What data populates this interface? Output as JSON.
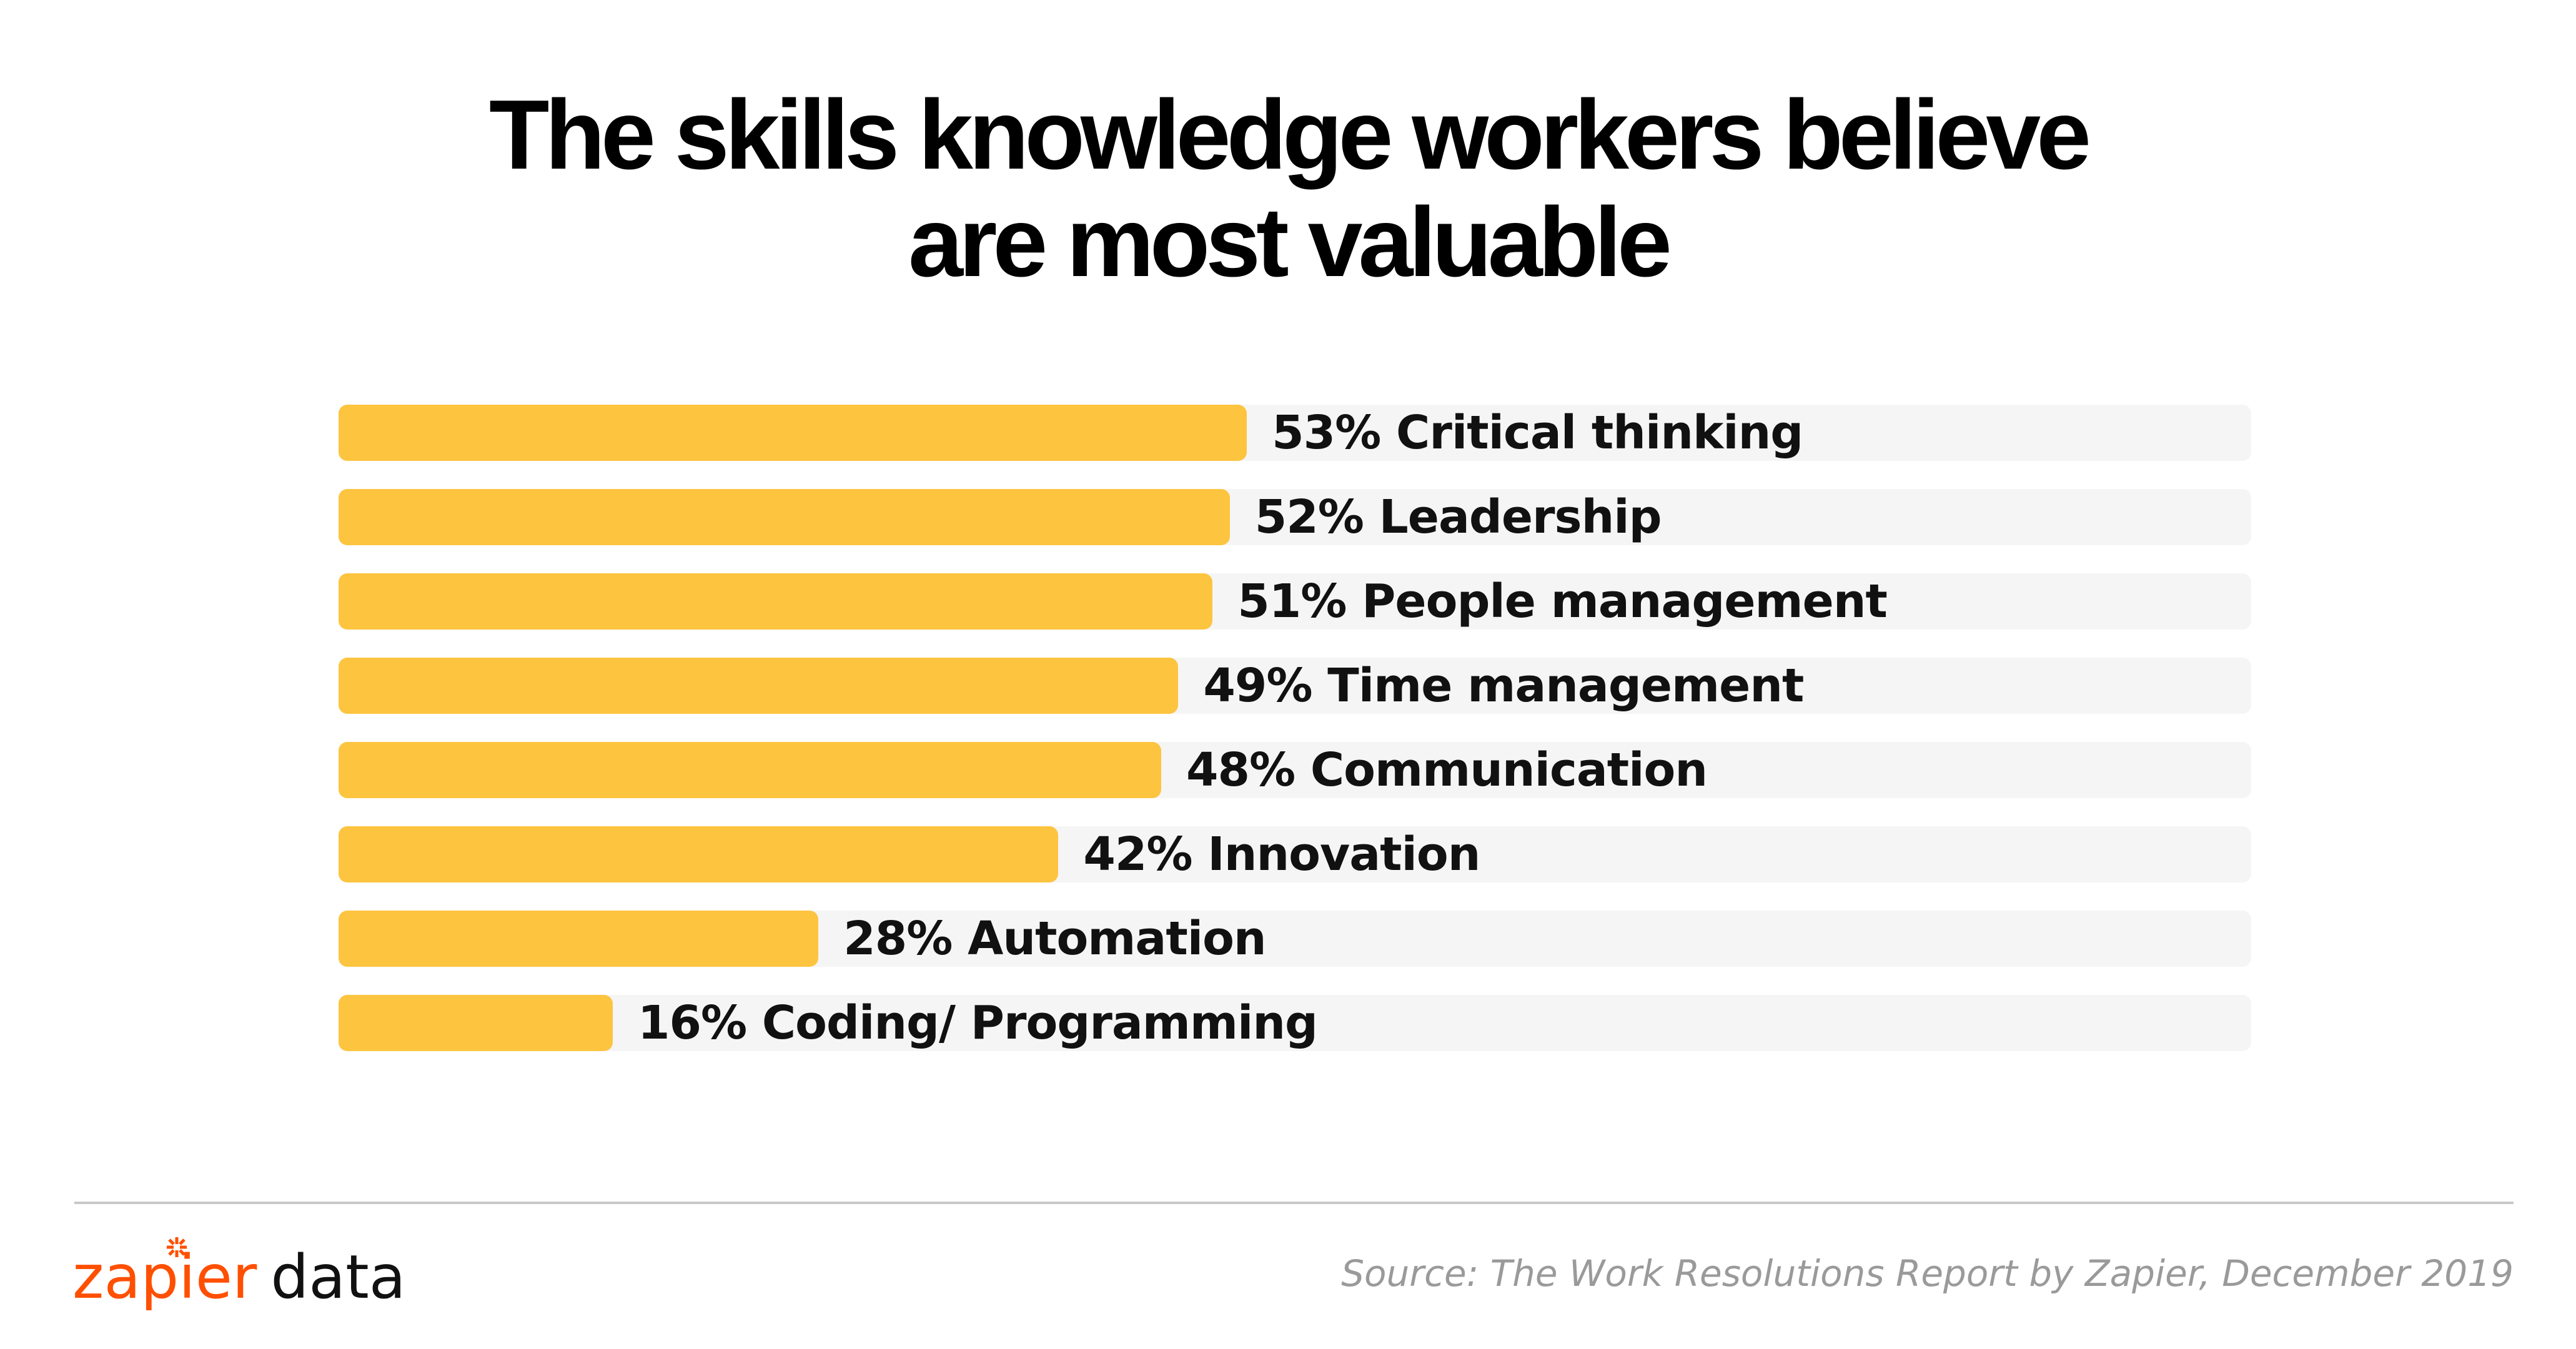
{
  "chart_data": {
    "type": "bar",
    "orientation": "horizontal",
    "title": "The skills knowledge workers believe are most valuable",
    "title_lines": [
      "The skills knowledge workers believe",
      "are most valuable"
    ],
    "categories": [
      "Critical thinking",
      "Leadership",
      "People management",
      "Time management",
      "Communication",
      "Innovation",
      "Automation",
      "Coding/ Programming"
    ],
    "values": [
      53,
      52,
      51,
      49,
      48,
      42,
      28,
      16
    ],
    "labels": [
      "53% Critical thinking",
      "52% Leadership",
      "51% People management",
      "49% Time management",
      "48% Communication",
      "42% Innovation",
      "28% Automation",
      "16% Coding/ Programming"
    ],
    "unit": "%",
    "xlim": [
      0,
      111.6
    ],
    "grid": false,
    "xlabel": "",
    "ylabel": "",
    "bar_color": "#fdc440",
    "track_color": "#f5f5f5"
  },
  "footer": {
    "logo_brand": "zapier",
    "logo_suffix": "data",
    "brand_color": "#ff4f00",
    "source": "Source: The Work Resolutions Report by Zapier, December 2019"
  }
}
